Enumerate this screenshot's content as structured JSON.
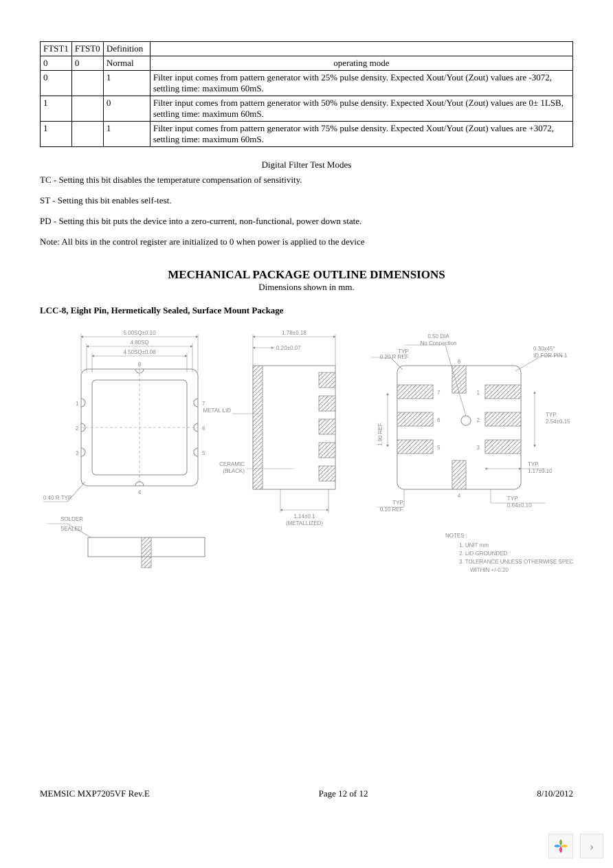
{
  "table": {
    "headers": [
      "FTST1",
      "FTST0",
      "Definition",
      ""
    ],
    "rows": [
      [
        "0",
        "0",
        "Normal",
        "operating    mode"
      ],
      [
        "0",
        "",
        "1",
        "Filter input comes from pattern generator with 25% pulse density. Expected Xout/Yout (Zout) values are -3072, settling time: maximum 60mS."
      ],
      [
        "1",
        "",
        "0",
        "Filter input comes from pattern generator with 50% pulse density. Expected Xout/Yout (Zout) values are 0± 1LSB, settling time: maximum 60mS."
      ],
      [
        "1",
        "",
        "1",
        "Filter input comes from pattern generator with 75% pulse density.  Expected Xout/Yout (Zout) values are +3072, settling time: maximum 60mS."
      ]
    ],
    "col_widths": [
      "44px",
      "46px",
      "68px",
      "auto"
    ]
  },
  "caption": "Digital Filter Test Modes",
  "notes": {
    "tc": "TC - Setting this bit disables the temperature compensation of sensitivity.",
    "st": "ST - Setting this bit enables self-test.",
    "pd": "PD - Setting this bit puts the device into a zero-current, non-functional, power down state.",
    "init": "Note: All bits in the control register are initialized to 0 when power is applied to the device"
  },
  "section": {
    "title": "MECHANICAL PACKAGE OUTLINE DIMENSIONS",
    "subtitle": "Dimensions shown in mm."
  },
  "package_heading": "LCC-8, Eight Pin, Hermetically Sealed, Surface Mount Package",
  "diagram": {
    "colors": {
      "line": "#888888",
      "text": "#888888",
      "bg": "#ffffff"
    },
    "font_family": "Arial",
    "font_size": 8,
    "top_view": {
      "dims": {
        "outer_sq": "5.00SQ±0.10",
        "mid_sq": "4.80SQ",
        "inner_sq": "4.50SQ±0.08",
        "corner_r": "0.40 R TYP."
      },
      "pin_labels": [
        "1",
        "2",
        "3",
        "4",
        "5",
        "6",
        "7",
        "8"
      ]
    },
    "side_view": {
      "seal": "SOLDER SEALED",
      "dims": {
        "height": "1.78±0.18",
        "lid_t": "0.20±0.07",
        "lid_label": "METAL LID",
        "body_label": "CERAMIC (BLACK)",
        "metallized": "1.14±0.1 (METALLIZED)"
      }
    },
    "bottom_view": {
      "dims": {
        "circle": "0.50 DIA No Connection",
        "typ_r": "TYP. 0.20 R REF.",
        "pin1_id": "0.30x45° ID FOR PIN 1",
        "pitch": "TYP. 2.54±0.15",
        "pad_w": "TYP. 1.17±0.10",
        "pad_h": "TYP. 0.64±0.10",
        "edge": "TYP. 0.10 REF.",
        "gap": "1.90 REF."
      },
      "notes_title": "NOTES :",
      "notes": [
        "1.  UNIT mm",
        "2.  LID GROUNDED",
        "3.  TOLERANCE UNLESS OTHERWISE SPECIFIED WITHIN +/-0.20"
      ]
    }
  },
  "footer": {
    "left": "MEMSIC MXP7205VF Rev.E",
    "center": "Page 12 of 12",
    "right": "8/10/2012"
  },
  "widget": {
    "logo_colors": [
      "#7cb342",
      "#fbc02d",
      "#ec407a",
      "#42a5f5"
    ]
  }
}
